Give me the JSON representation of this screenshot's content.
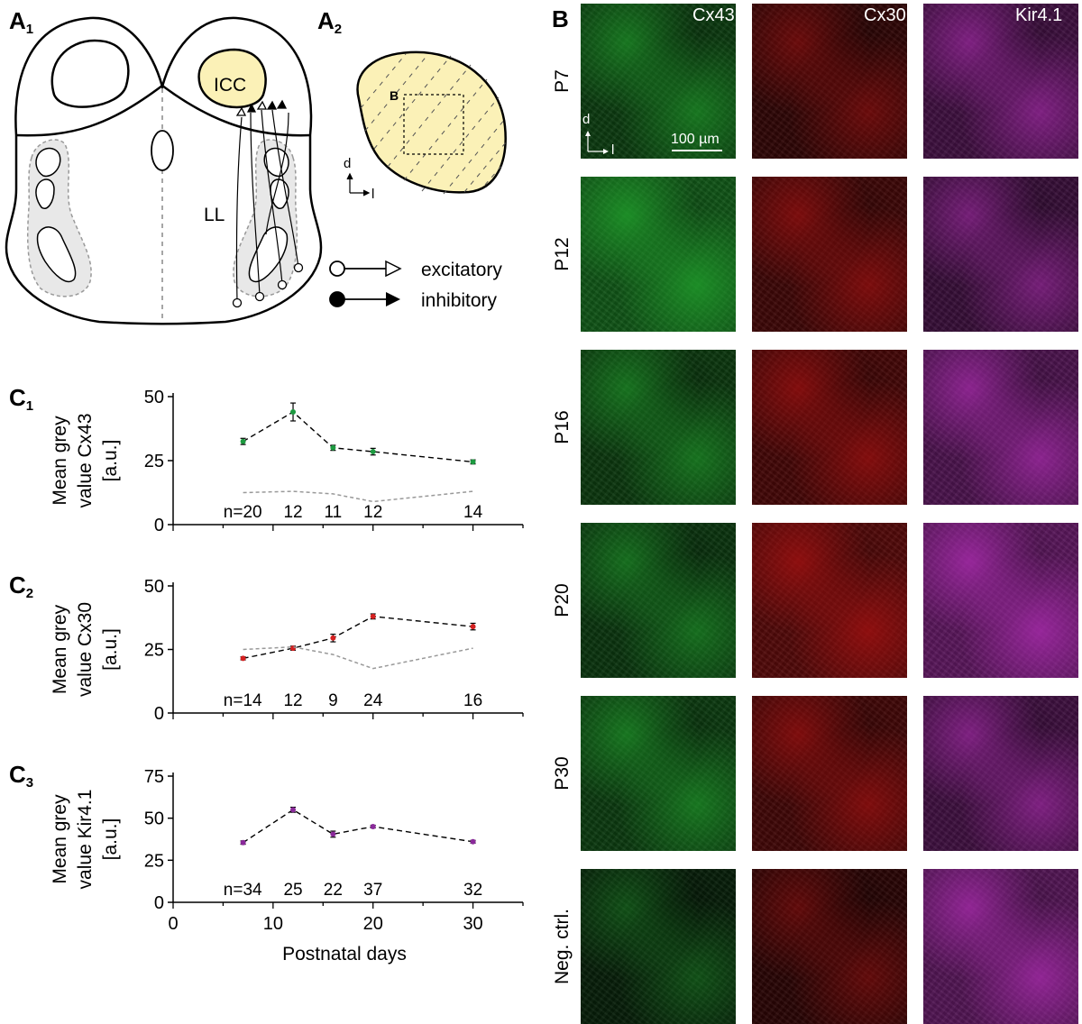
{
  "panels": {
    "a1": {
      "letter": "A",
      "sub": "1"
    },
    "a2": {
      "letter": "A",
      "sub": "2"
    },
    "b": {
      "letter": "B"
    },
    "c1": {
      "letter": "C",
      "sub": "1"
    },
    "c2": {
      "letter": "C",
      "sub": "2"
    },
    "c3": {
      "letter": "C",
      "sub": "3"
    }
  },
  "diagram": {
    "icc": "ICC",
    "ll": "LL",
    "b_box": "B",
    "axis_d": "d",
    "axis_l": "l",
    "legend": {
      "excitatory": "excitatory",
      "inhibitory": "inhibitory"
    },
    "colors": {
      "icc_fill": "#fbf1b7",
      "ll_fill": "#e8e8e8"
    }
  },
  "micrographs": {
    "columns": [
      "Cx43",
      "Cx30",
      "Kir4.1"
    ],
    "rows": [
      "P7",
      "P12",
      "P16",
      "P20",
      "P30",
      "Neg. ctrl."
    ],
    "scale_bar": "100 µm",
    "axis_d": "d",
    "axis_l": "l",
    "brightness": [
      [
        0.55,
        0.35,
        0.55
      ],
      [
        0.95,
        0.55,
        0.45
      ],
      [
        0.5,
        0.65,
        0.75
      ],
      [
        0.45,
        0.85,
        0.95
      ],
      [
        0.55,
        0.6,
        0.55
      ],
      [
        0.1,
        0.25,
        0.85
      ]
    ],
    "colors": {
      "cx43": "#1f9a2a",
      "cx30": "#a11010",
      "kir": "#a42aa8"
    }
  },
  "chart_data": [
    {
      "type": "line",
      "ylabel": [
        "Mean grey",
        "value Cx43",
        "[a.u.]"
      ],
      "ylim": [
        0,
        50
      ],
      "yticks": [
        0,
        25,
        50
      ],
      "x": [
        7,
        12,
        16,
        20,
        30
      ],
      "series": [
        {
          "values": [
            32.5,
            44,
            30,
            28.5,
            24.5
          ],
          "err": [
            1.2,
            3.5,
            1.0,
            1.3,
            0.8
          ],
          "color": "#1d9a40"
        },
        {
          "values": [
            12.5,
            13,
            12,
            9,
            13
          ],
          "dashed_grey": true
        }
      ],
      "n_labels": [
        "n=20",
        "12",
        "11",
        "12",
        "14"
      ]
    },
    {
      "type": "line",
      "ylabel": [
        "Mean grey",
        "value Cx30",
        "[a.u.]"
      ],
      "ylim": [
        0,
        50
      ],
      "yticks": [
        0,
        25,
        50
      ],
      "x": [
        7,
        12,
        16,
        20,
        30
      ],
      "series": [
        {
          "values": [
            21.5,
            25.5,
            29.5,
            38,
            34
          ],
          "err": [
            0.6,
            0.8,
            1.5,
            1.0,
            1.3
          ],
          "color": "#d42020"
        },
        {
          "values": [
            25,
            26,
            23,
            17.5,
            25.5
          ],
          "dashed_grey": true
        }
      ],
      "n_labels": [
        "n=14",
        "12",
        "9",
        "24",
        "16"
      ]
    },
    {
      "type": "line",
      "ylabel": [
        "Mean grey",
        "value Kir4.1",
        "[a.u.]"
      ],
      "ylim": [
        0,
        75
      ],
      "yticks": [
        0,
        25,
        50,
        75
      ],
      "xlim": [
        0,
        35
      ],
      "xticks": [
        0,
        10,
        20,
        30
      ],
      "xlabel": "Postnatal days",
      "x": [
        7,
        12,
        16,
        20,
        30
      ],
      "series": [
        {
          "values": [
            35.5,
            55,
            40.5,
            45,
            36
          ],
          "err": [
            1.0,
            1.5,
            1.8,
            0.8,
            0.8
          ],
          "color": "#8a2a9a"
        }
      ],
      "n_labels": [
        "n=34",
        "25",
        "22",
        "37",
        "32"
      ]
    }
  ]
}
